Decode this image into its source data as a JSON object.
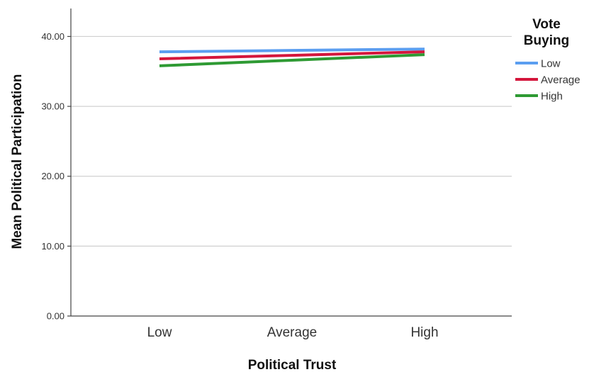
{
  "chart_data": {
    "type": "line",
    "title": "",
    "xlabel": "Political Trust",
    "ylabel": "Mean Political Participation",
    "categories": [
      "Low",
      "Average",
      "High"
    ],
    "ylim": [
      0,
      44
    ],
    "yticks": [
      0,
      10,
      20,
      30,
      40
    ],
    "ytick_labels": [
      "0.00",
      "10.00",
      "20.00",
      "30.00",
      "40.00"
    ],
    "grid": true,
    "legend": {
      "title_lines": [
        "Vote",
        "Buying"
      ],
      "placement": "top-right outside"
    },
    "series": [
      {
        "name": "Low",
        "color": "#5b9ef0",
        "values": [
          37.8,
          38.0,
          38.2
        ]
      },
      {
        "name": "Average",
        "color": "#d4163c",
        "values": [
          36.8,
          37.3,
          37.8
        ]
      },
      {
        "name": "High",
        "color": "#2e9a33",
        "values": [
          35.8,
          36.6,
          37.4
        ]
      }
    ]
  }
}
